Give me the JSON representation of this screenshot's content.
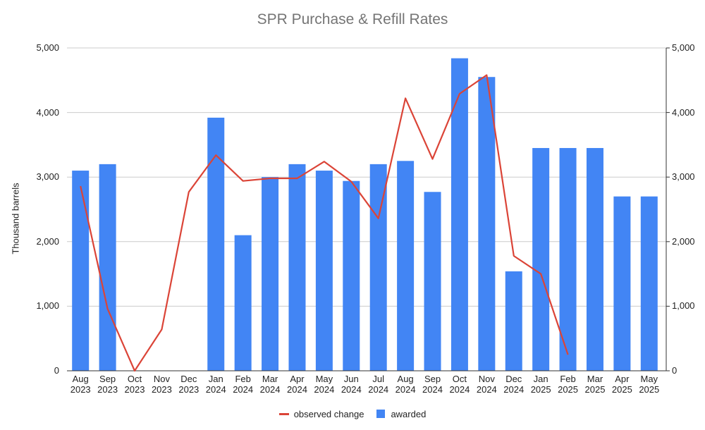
{
  "chart_data": {
    "type": "bar",
    "title": "SPR Purchase & Refill Rates",
    "xlabel": "",
    "ylabel": "Thousand barrels",
    "ylim": [
      0,
      5000
    ],
    "y_ticks": [
      "0",
      "1,000",
      "2,000",
      "3,000",
      "4,000",
      "5,000"
    ],
    "y2_ticks": [
      "0",
      "1,000",
      "2,000",
      "3,000",
      "4,000",
      "5,000"
    ],
    "grid": true,
    "legend_position": "bottom",
    "categories": [
      "Aug 2023",
      "Sep 2023",
      "Oct 2023",
      "Nov 2023",
      "Dec 2023",
      "Jan 2024",
      "Feb 2024",
      "Mar 2024",
      "Apr 2024",
      "May 2024",
      "Jun 2024",
      "Jul 2024",
      "Aug 2024",
      "Sep 2024",
      "Oct 2024",
      "Nov 2024",
      "Dec 2024",
      "Jan 2025",
      "Feb 2025",
      "Mar 2025",
      "Apr 2025",
      "May 2025"
    ],
    "series": [
      {
        "name": "observed change",
        "type": "line",
        "color": "#DB4437",
        "values": [
          2860,
          960,
          0,
          640,
          2770,
          3340,
          2940,
          2980,
          2980,
          3240,
          2930,
          2360,
          4220,
          3280,
          4290,
          4580,
          1780,
          1500,
          250,
          null,
          null,
          null
        ]
      },
      {
        "name": "awarded",
        "type": "bar",
        "color": "#4285F4",
        "values": [
          3100,
          3200,
          0,
          0,
          0,
          3920,
          2100,
          3000,
          3200,
          3100,
          2940,
          3200,
          3250,
          2770,
          4840,
          4550,
          1540,
          3450,
          3450,
          3450,
          2700,
          2700
        ]
      }
    ]
  }
}
